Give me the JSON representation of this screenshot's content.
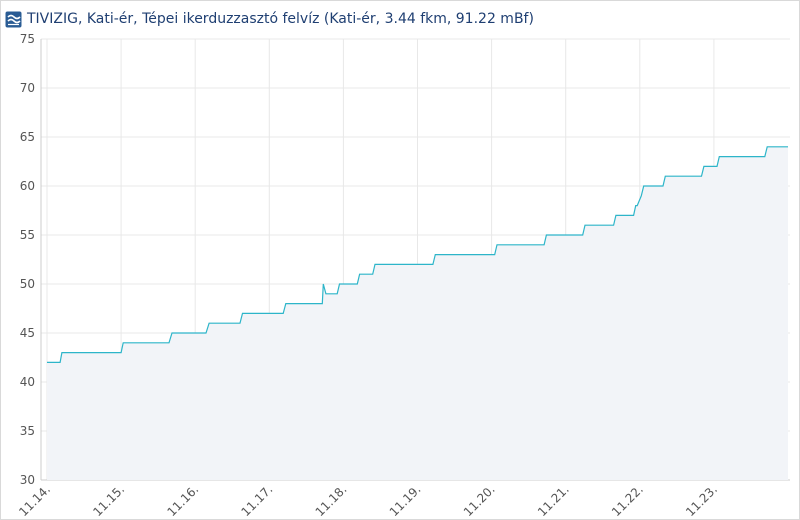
{
  "header": {
    "title": "TIVIZIG, Kati-ér, Tépei ikerduzzasztó felvíz (Kati-ér, 3.44 fkm, 91.22 mBf)",
    "logo_icon": "tivizig-logo-icon"
  },
  "colors": {
    "line": "#2db5c9",
    "area": "#f2f4f8",
    "grid": "#e8e8e8",
    "axis_text": "#555555",
    "title": "#1f3f72",
    "logo": "#2a5c94"
  },
  "chart_data": {
    "type": "line",
    "title": "",
    "xlabel": "",
    "ylabel": "",
    "ylim": [
      30,
      75
    ],
    "xlim": [
      "11.14. 00:00",
      "11.23. 24:00"
    ],
    "y_ticks": [
      30,
      35,
      40,
      45,
      50,
      55,
      60,
      65,
      70,
      75
    ],
    "x_tick_labels": [
      "11.14.",
      "11.15.",
      "11.16.",
      "11.17.",
      "11.18.",
      "11.19.",
      "11.20.",
      "11.21.",
      "11.22.",
      "11.23."
    ],
    "grid": true,
    "legend": "none",
    "fill_below": true,
    "series": [
      {
        "x": [
          "11.14. 00:00",
          "11.14. 04:15",
          "11.14. 04:50",
          "11.14. 05:30",
          "11.15. 00:00",
          "11.15. 00:40",
          "11.15. 15:30",
          "11.15. 16:30",
          "11.16. 03:30",
          "11.16. 04:30",
          "11.16. 14:30",
          "11.16. 15:20",
          "11.17. 04:30",
          "11.17. 05:20",
          "11.17. 17:10",
          "11.17. 17:30",
          "11.17. 18:20",
          "11.17. 22:00",
          "11.17. 22:45",
          "11.18. 04:30",
          "11.18. 05:15",
          "11.18. 09:30",
          "11.18. 10:15",
          "11.19. 05:00",
          "11.19. 05:45",
          "11.19. 01:00",
          "11.20. 01:00",
          "11.20. 01:45",
          "11.20. 17:00",
          "11.20. 17:45",
          "11.21. 05:30",
          "11.21. 06:15",
          "11.21. 15:30",
          "11.21. 16:15",
          "11.21. 22:00",
          "11.21. 22:40",
          "11.21. 23:10",
          "11.22. 00:30",
          "11.22. 01:15",
          "11.22. 04:00",
          "11.22. 04:45",
          "11.22. 07:30",
          "11.22. 08:15",
          "11.22. 20:00",
          "11.22. 20:45",
          "11.23. 01:00",
          "11.23. 01:45",
          "11.23. 16:30",
          "11.23. 17:15",
          "11.23. 24:00"
        ],
        "values": [
          42,
          42,
          43,
          43,
          43,
          44,
          44,
          45,
          45,
          46,
          46,
          47,
          47,
          48,
          48,
          50,
          49,
          49,
          50,
          50,
          51,
          51,
          52,
          52,
          53,
          53,
          53,
          54,
          54,
          55,
          55,
          56,
          56,
          57,
          57,
          58,
          58,
          59,
          60,
          60,
          60,
          60,
          61,
          61,
          62,
          62,
          63,
          63,
          64,
          64
        ]
      }
    ]
  }
}
